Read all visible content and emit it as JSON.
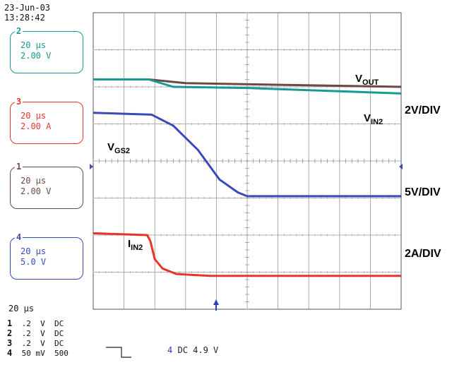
{
  "timestamp": {
    "date": "23-Jun-03",
    "time": "13:28:42"
  },
  "channels": [
    {
      "num": "2",
      "time": "20 µs",
      "scale": "2.00 V",
      "color": "#179a95"
    },
    {
      "num": "3",
      "time": "20 µs",
      "scale": "2.00 A",
      "color": "#e8352c"
    },
    {
      "num": "1",
      "time": "20 µs",
      "scale": "2.00 V",
      "color": "#6b4a44"
    },
    {
      "num": "4",
      "time": "20 µs",
      "scale": "5.0 V",
      "color": "#3a4ab8"
    }
  ],
  "timebase": "20 µs",
  "channel_list": [
    {
      "n": "1",
      "text": " .2  V  DC"
    },
    {
      "n": "2",
      "text": " .2  V  DC"
    },
    {
      "n": "3",
      "text": " .2  V  DC"
    },
    {
      "n": "4",
      "text": " 50 mV  500"
    }
  ],
  "trigger": {
    "channel": "4",
    "text": "DC 4.9 V"
  },
  "chart_data": {
    "type": "line",
    "title": "",
    "xlabel": "",
    "ylabel": "",
    "x_divisions": 10,
    "y_divisions": 8,
    "xlim": [
      0,
      10
    ],
    "ylim": [
      0,
      8
    ],
    "grid": true,
    "series": [
      {
        "name": "VOUT",
        "label_main": "V",
        "label_sub": "OUT",
        "color": "#6b4a44",
        "x": [
          0,
          1.8,
          3,
          10
        ],
        "y": [
          6.2,
          6.2,
          6.1,
          6.0
        ]
      },
      {
        "name": "VIN2",
        "label_main": "V",
        "label_sub": "IN2",
        "color": "#179a95",
        "x": [
          0,
          1.8,
          2.6,
          5,
          10
        ],
        "y": [
          6.2,
          6.2,
          6.0,
          5.97,
          5.82
        ]
      },
      {
        "name": "VGS2",
        "label_main": "V",
        "label_sub": "GS2",
        "color": "#3a4ab8",
        "x": [
          0,
          1.9,
          2.6,
          3.4,
          4.1,
          4.7,
          5.0,
          10
        ],
        "y": [
          5.3,
          5.25,
          4.95,
          4.3,
          3.5,
          3.15,
          3.05,
          3.05
        ]
      },
      {
        "name": "IIN2",
        "label_main": "I",
        "label_sub": "IN2",
        "color": "#e8352c",
        "x": [
          0,
          1.75,
          1.85,
          2.0,
          2.25,
          2.7,
          3.8,
          10
        ],
        "y": [
          2.05,
          2.0,
          1.85,
          1.35,
          1.1,
          0.95,
          0.9,
          0.9
        ]
      }
    ],
    "scale_labels": [
      "2V/DIV",
      "5V/DIV",
      "2A/DIV"
    ]
  }
}
